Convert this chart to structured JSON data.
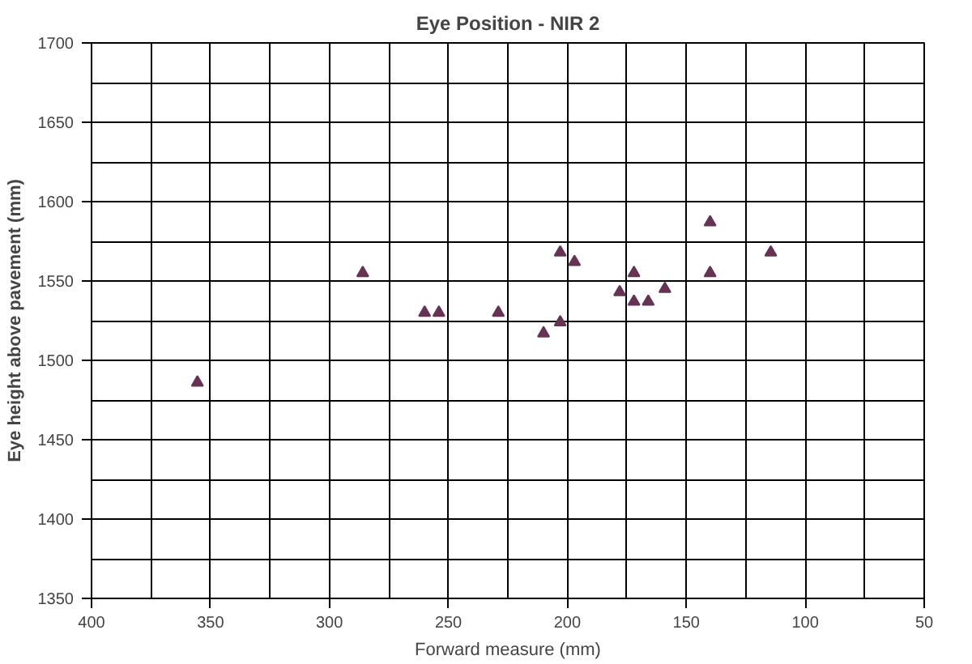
{
  "chart_data": {
    "type": "scatter",
    "title": "Eye Position - NIR 2",
    "xlabel": "Forward measure (mm)",
    "ylabel": "Eye height above pavement (mm)",
    "x": [
      355.5,
      286,
      260,
      254,
      229,
      210,
      203,
      203,
      197,
      178,
      172,
      172,
      166,
      159,
      140,
      140,
      114.5
    ],
    "values": [
      1486,
      1555,
      1530,
      1530,
      1530,
      1517,
      1524,
      1568,
      1562,
      1543,
      1555,
      1537,
      1537,
      1545,
      1587,
      1555,
      1568
    ],
    "color": "#663355",
    "marker": "triangle",
    "xlim": [
      400,
      50
    ],
    "xticks": [
      400,
      350,
      300,
      250,
      200,
      150,
      100,
      50
    ],
    "ylim": [
      1350,
      1700
    ],
    "yticks": [
      1350,
      1400,
      1450,
      1500,
      1550,
      1600,
      1650,
      1700
    ],
    "grid": true
  }
}
